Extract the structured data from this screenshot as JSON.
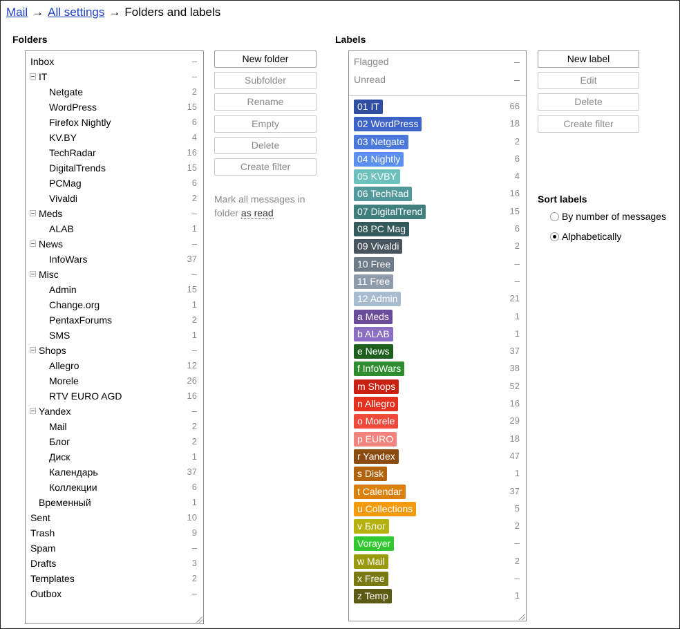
{
  "breadcrumb": {
    "mail": "Mail",
    "settings": "All settings",
    "arrow1": "→",
    "arrow2": "→",
    "current": "Folders and labels"
  },
  "folders": {
    "title": "Folders",
    "items": [
      {
        "name": "Inbox",
        "count": "–",
        "level": 0
      },
      {
        "name": "IT",
        "count": "–",
        "level": 1,
        "toggle": true
      },
      {
        "name": "Netgate",
        "count": "2",
        "level": 2
      },
      {
        "name": "WordPress",
        "count": "15",
        "level": 2
      },
      {
        "name": "Firefox Nightly",
        "count": "6",
        "level": 2
      },
      {
        "name": "KV.BY",
        "count": "4",
        "level": 2
      },
      {
        "name": "TechRadar",
        "count": "16",
        "level": 2
      },
      {
        "name": "DigitalTrends",
        "count": "15",
        "level": 2
      },
      {
        "name": "PCMag",
        "count": "6",
        "level": 2
      },
      {
        "name": "Vivaldi",
        "count": "2",
        "level": 2
      },
      {
        "name": "Meds",
        "count": "–",
        "level": 1,
        "toggle": true
      },
      {
        "name": "ALAB",
        "count": "1",
        "level": 2
      },
      {
        "name": "News",
        "count": "–",
        "level": 1,
        "toggle": true
      },
      {
        "name": "InfoWars",
        "count": "37",
        "level": 2
      },
      {
        "name": "Misc",
        "count": "–",
        "level": 1,
        "toggle": true
      },
      {
        "name": "Admin",
        "count": "15",
        "level": 2
      },
      {
        "name": "Change.org",
        "count": "1",
        "level": 2
      },
      {
        "name": "PentaxForums",
        "count": "2",
        "level": 2
      },
      {
        "name": "SMS",
        "count": "1",
        "level": 2
      },
      {
        "name": "Shops",
        "count": "–",
        "level": 1,
        "toggle": true
      },
      {
        "name": "Allegro",
        "count": "12",
        "level": 2
      },
      {
        "name": "Morele",
        "count": "26",
        "level": 2
      },
      {
        "name": "RTV EURO AGD",
        "count": "16",
        "level": 2
      },
      {
        "name": "Yandex",
        "count": "–",
        "level": 1,
        "toggle": true
      },
      {
        "name": "Mail",
        "count": "2",
        "level": 2
      },
      {
        "name": "Блог",
        "count": "2",
        "level": 2
      },
      {
        "name": "Диск",
        "count": "1",
        "level": 2
      },
      {
        "name": "Календарь",
        "count": "37",
        "level": 2
      },
      {
        "name": "Коллекции",
        "count": "6",
        "level": 2
      },
      {
        "name": "Временный",
        "count": "1",
        "level": 1
      },
      {
        "name": "Sent",
        "count": "10",
        "level": 0
      },
      {
        "name": "Trash",
        "count": "9",
        "level": 0
      },
      {
        "name": "Spam",
        "count": "–",
        "level": 0
      },
      {
        "name": "Drafts",
        "count": "3",
        "level": 0
      },
      {
        "name": "Templates",
        "count": "2",
        "level": 0
      },
      {
        "name": "Outbox",
        "count": "–",
        "level": 0
      }
    ]
  },
  "folder_buttons": {
    "new_folder": "New folder",
    "subfolder": "Subfolder",
    "rename": "Rename",
    "empty": "Empty",
    "delete": "Delete",
    "create_filter": "Create filter"
  },
  "mark_read": {
    "prefix": "Mark all messages in folder",
    "link": "as read"
  },
  "labels": {
    "title": "Labels",
    "system": [
      {
        "name": "Flagged",
        "count": "–"
      },
      {
        "name": "Unread",
        "count": "–"
      }
    ],
    "items": [
      {
        "name": "01 IT",
        "count": "66",
        "color": "#2f4ea1"
      },
      {
        "name": "02 WordPress",
        "count": "18",
        "color": "#3d63c9"
      },
      {
        "name": "03 Netgate",
        "count": "2",
        "color": "#4a78db"
      },
      {
        "name": "04 Nightly",
        "count": "6",
        "color": "#5b8fef"
      },
      {
        "name": "05 KVBY",
        "count": "4",
        "color": "#6cc1bd"
      },
      {
        "name": "06 TechRad",
        "count": "16",
        "color": "#54999a"
      },
      {
        "name": "07 DigitalTrend",
        "count": "15",
        "color": "#3f7f7e"
      },
      {
        "name": "08 PC Mag",
        "count": "6",
        "color": "#355a5c"
      },
      {
        "name": "09 Vivaldi",
        "count": "2",
        "color": "#4a545d"
      },
      {
        "name": "10 Free",
        "count": "–",
        "color": "#6d7a88"
      },
      {
        "name": "11 Free",
        "count": "–",
        "color": "#8d9bab"
      },
      {
        "name": "12 Admin",
        "count": "21",
        "color": "#a9bccf"
      },
      {
        "name": "a Meds",
        "count": "1",
        "color": "#6b4c9b"
      },
      {
        "name": "b ALAB",
        "count": "1",
        "color": "#8a6fc5"
      },
      {
        "name": "e News",
        "count": "37",
        "color": "#1d5f1d"
      },
      {
        "name": "f InfoWars",
        "count": "38",
        "color": "#2f8c2f"
      },
      {
        "name": "m Shops",
        "count": "52",
        "color": "#c92011"
      },
      {
        "name": "n Allegro",
        "count": "16",
        "color": "#e6301e"
      },
      {
        "name": "o Morele",
        "count": "29",
        "color": "#f04a3c"
      },
      {
        "name": "p EURO",
        "count": "18",
        "color": "#f3837c"
      },
      {
        "name": "r Yandex",
        "count": "47",
        "color": "#8c4b0e"
      },
      {
        "name": "s Disk",
        "count": "1",
        "color": "#b3620d"
      },
      {
        "name": "t Calendar",
        "count": "37",
        "color": "#d9800d"
      },
      {
        "name": "u Collections",
        "count": "5",
        "color": "#f39a0f"
      },
      {
        "name": "v Блог",
        "count": "2",
        "color": "#b6b20d"
      },
      {
        "name": "Vorayer",
        "count": "–",
        "color": "#32c832"
      },
      {
        "name": "w Mail",
        "count": "2",
        "color": "#9a9a0e"
      },
      {
        "name": "x Free",
        "count": "–",
        "color": "#7a7a14"
      },
      {
        "name": "z Temp",
        "count": "1",
        "color": "#5b5b14"
      }
    ]
  },
  "label_buttons": {
    "new_label": "New label",
    "edit": "Edit",
    "delete": "Delete",
    "create_filter": "Create filter"
  },
  "sort": {
    "title": "Sort labels",
    "options": [
      {
        "label": "By number of messages",
        "selected": false
      },
      {
        "label": "Alphabetically",
        "selected": true
      }
    ]
  }
}
